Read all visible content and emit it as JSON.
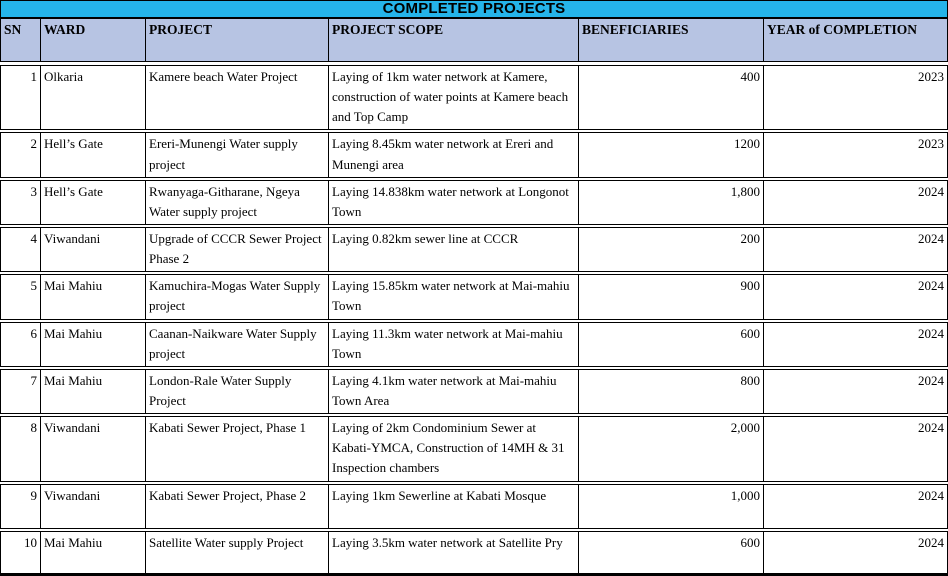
{
  "title": "COMPLETED PROJECTS",
  "columns": [
    {
      "key": "sn",
      "label": "SN"
    },
    {
      "key": "ward",
      "label": "WARD"
    },
    {
      "key": "project",
      "label": "PROJECT"
    },
    {
      "key": "scope",
      "label": "PROJECT SCOPE"
    },
    {
      "key": "beneficiaries",
      "label": "BENEFICIARIES"
    },
    {
      "key": "year",
      "label": "YEAR of COMPLETION"
    }
  ],
  "rows": [
    {
      "sn": "1",
      "ward": "Olkaria",
      "project": "Kamere beach Water Project",
      "scope": "Laying of 1km water network at Kamere, construction of water points at Kamere beach and Top Camp",
      "beneficiaries": "400",
      "year": "2023"
    },
    {
      "sn": "2",
      "ward": "Hell’s Gate",
      "project": "Ereri-Munengi Water supply project",
      "scope": "Laying 8.45km water network at Ereri and Munengi area",
      "beneficiaries": "1200",
      "year": "2023"
    },
    {
      "sn": "3",
      "ward": "Hell’s Gate",
      "project": "Rwanyaga-Githarane, Ngeya Water supply project",
      "scope": "Laying 14.838km water network at Longonot Town",
      "beneficiaries": "1,800",
      "year": "2024"
    },
    {
      "sn": "4",
      "ward": "Viwandani",
      "project": "Upgrade of CCCR Sewer Project Phase 2",
      "scope": "Laying 0.82km sewer line at CCCR",
      "beneficiaries": "200",
      "year": "2024"
    },
    {
      "sn": "5",
      "ward": "Mai Mahiu",
      "project": "Kamuchira-Mogas Water Supply project",
      "scope": "Laying 15.85km water network at Mai-mahiu Town",
      "beneficiaries": "900",
      "year": "2024"
    },
    {
      "sn": "6",
      "ward": "Mai Mahiu",
      "project": "Caanan-Naikware Water Supply project",
      "scope": "Laying 11.3km water network at Mai-mahiu Town",
      "beneficiaries": "600",
      "year": "2024"
    },
    {
      "sn": "7",
      "ward": "Mai Mahiu",
      "project": "London-Rale Water Supply Project",
      "scope": "Laying 4.1km water network at Mai-mahiu Town Area",
      "beneficiaries": "800",
      "year": "2024"
    },
    {
      "sn": "8",
      "ward": "Viwandani",
      "project": "Kabati Sewer Project, Phase 1",
      "scope": "Laying of  2km Condominium Sewer at Kabati-YMCA, Construction of 14MH & 31 Inspection chambers",
      "beneficiaries": "2,000",
      "year": "2024"
    },
    {
      "sn": "9",
      "ward": "Viwandani",
      "project": "Kabati Sewer Project, Phase 2",
      "scope": "Laying 1km Sewerline at Kabati Mosque",
      "beneficiaries": "1,000",
      "year": "2024"
    },
    {
      "sn": "10",
      "ward": "Mai Mahiu",
      "project": "Satellite Water supply Project",
      "scope": "Laying 3.5km water network at Satellite Pry",
      "beneficiaries": "600",
      "year": "2024"
    }
  ],
  "colors": {
    "title_bg": "#25B4EA",
    "header_bg": "#B7C4E3",
    "border": "#000000",
    "row_bg": "#FFFFFF"
  }
}
